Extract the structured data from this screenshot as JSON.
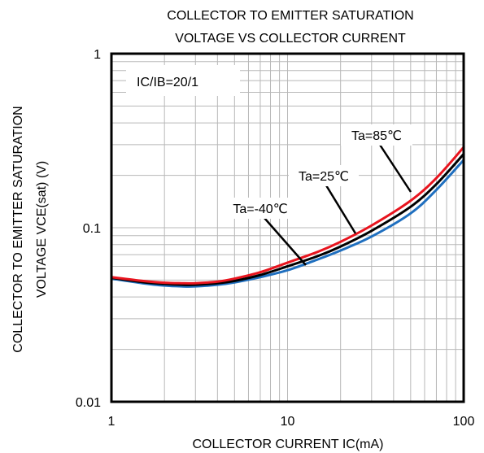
{
  "chart_data": {
    "type": "line",
    "title_lines": [
      "COLLECTOR TO EMITTER SATURATION",
      "VOLTAGE VS COLLECTOR CURRENT"
    ],
    "xlabel": "COLLECTOR CURRENT  IC(mA)",
    "ylabel_lines": [
      "COLLECTOR TO EMITTER SATURATION",
      "VOLTAGE VCE(sat) (V)"
    ],
    "x_scale": "log",
    "y_scale": "log",
    "xlim": [
      1,
      100
    ],
    "ylim": [
      0.01,
      1
    ],
    "x_ticks": [
      1,
      10,
      100
    ],
    "x_tick_labels": [
      "1",
      "10",
      "100"
    ],
    "y_ticks": [
      0.01,
      0.1,
      1
    ],
    "y_tick_labels": [
      "0.01",
      "0.1",
      "1"
    ],
    "grid": true,
    "condition_label": "IC/IB=20/1",
    "series": [
      {
        "name": "Ta=-40℃",
        "color": "#1f6fbf",
        "x": [
          1,
          1.5,
          2,
          2.5,
          3,
          4,
          5,
          7,
          10,
          15,
          20,
          30,
          50,
          70,
          100
        ],
        "y": [
          0.051,
          0.048,
          0.0465,
          0.046,
          0.046,
          0.047,
          0.0485,
          0.052,
          0.057,
          0.066,
          0.074,
          0.089,
          0.121,
          0.165,
          0.245
        ]
      },
      {
        "name": "Ta=25℃",
        "color": "#000000",
        "x": [
          1,
          1.5,
          2,
          2.5,
          3,
          4,
          5,
          7,
          10,
          15,
          20,
          30,
          50,
          70,
          100
        ],
        "y": [
          0.0515,
          0.0487,
          0.0475,
          0.047,
          0.047,
          0.048,
          0.0495,
          0.0535,
          0.06,
          0.069,
          0.078,
          0.096,
          0.132,
          0.178,
          0.265
        ]
      },
      {
        "name": "Ta=85℃",
        "color": "#e8141e",
        "x": [
          1,
          1.5,
          2,
          2.5,
          3,
          4,
          5,
          7,
          10,
          15,
          20,
          30,
          50,
          70,
          100
        ],
        "y": [
          0.052,
          0.0495,
          0.0483,
          0.048,
          0.048,
          0.049,
          0.051,
          0.0555,
          0.063,
          0.073,
          0.083,
          0.103,
          0.143,
          0.193,
          0.29
        ]
      }
    ],
    "annotations": [
      {
        "text": "Ta=85℃",
        "series": "Ta=85℃"
      },
      {
        "text": "Ta=25℃",
        "series": "Ta=25℃"
      },
      {
        "text": "Ta=-40℃",
        "series": "Ta=-40℃"
      }
    ]
  }
}
